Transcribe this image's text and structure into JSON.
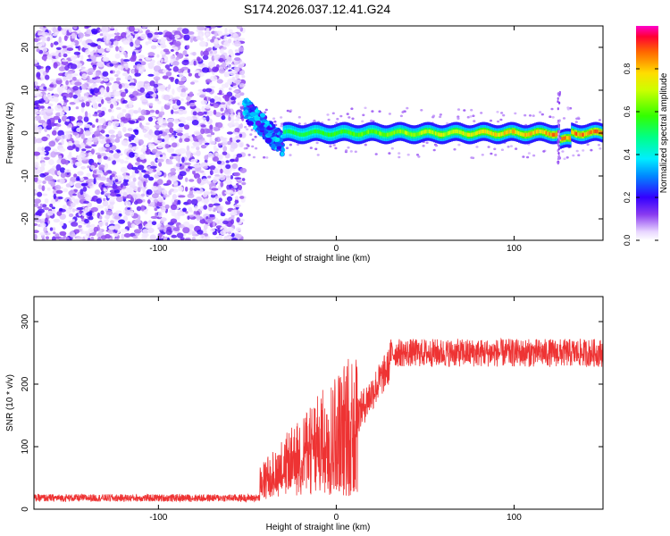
{
  "figure_title": "S174.2026.037.12.41.G24",
  "chart_data": [
    {
      "type": "heatmap",
      "title": "S174.2026.037.12.41.G24",
      "xlabel": "Height of straight line (km)",
      "ylabel": "Frequency (Hz)",
      "xlim": [
        -170,
        150
      ],
      "ylim": [
        -25,
        25
      ],
      "xticks": [
        -100,
        0,
        100
      ],
      "yticks": [
        -20,
        -10,
        0,
        10,
        20
      ],
      "colorbar": {
        "label": "Normalized spectral amplitude",
        "range": [
          0,
          1
        ],
        "ticks": [
          0.0,
          0.2,
          0.4,
          0.6,
          0.8
        ]
      },
      "regions": [
        {
          "name": "noise",
          "x_range": [
            -170,
            -52
          ],
          "freq_range": [
            -25,
            25
          ],
          "amplitude_range": [
            0.02,
            0.2
          ]
        },
        {
          "name": "transition",
          "x_range": [
            -52,
            -30
          ],
          "freq_center_range": [
            -5,
            6
          ],
          "amplitude_range": [
            0.15,
            0.4
          ]
        },
        {
          "name": "signal-band",
          "x_range": [
            -30,
            150
          ],
          "freq_center": 0,
          "half_width_hz": 2,
          "amplitude_range": [
            0.3,
            1.0
          ]
        }
      ],
      "grid": false
    },
    {
      "type": "line",
      "xlabel": "Height of straight line (km)",
      "ylabel": "SNR (10 * v/v)",
      "xlim": [
        -170,
        150
      ],
      "ylim": [
        0,
        340
      ],
      "xticks": [
        -100,
        0,
        100
      ],
      "yticks": [
        0,
        100,
        200,
        300
      ],
      "color": "#ee3333",
      "segments": [
        {
          "x_range": [
            -170,
            -43
          ],
          "mean": 18,
          "spread": 12
        },
        {
          "x_range": [
            -43,
            12
          ],
          "mean": 150,
          "spread": 160
        },
        {
          "x_range": [
            12,
            30
          ],
          "mean": 190,
          "spread": 60
        },
        {
          "x_range": [
            30,
            150
          ],
          "mean": 250,
          "spread": 45
        }
      ],
      "grid": false
    }
  ]
}
